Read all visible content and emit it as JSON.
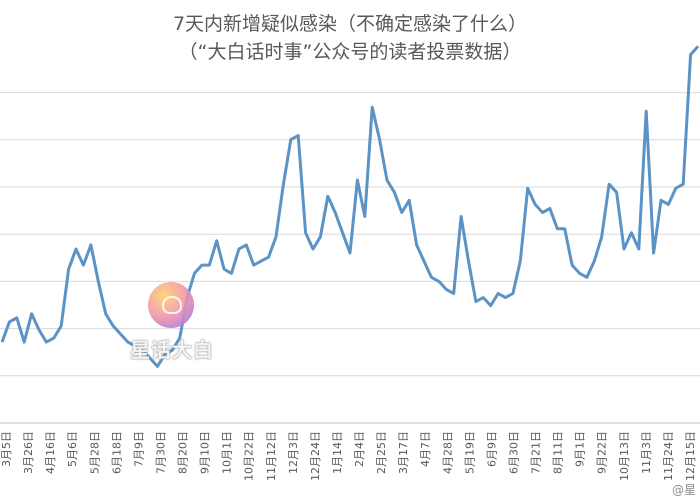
{
  "chart_data": {
    "type": "line",
    "title": "7天内新增疑似感染（不确定感染了什么）",
    "subtitle": "（“大白话时事”公众号的读者投票数据）",
    "series_color": "#5b93c6",
    "grid": true,
    "legend": "none",
    "x_tick_labels": [
      "3月5日",
      "3月26日",
      "4月16日",
      "5月6日",
      "5月28日",
      "6月18日",
      "7月9日",
      "7月30日",
      "8月20日",
      "9月10日",
      "10月1日",
      "10月22日",
      "11月12日",
      "12月3日",
      "12月24日",
      "1月14日",
      "2月4日",
      "2月25日",
      "3月17日",
      "4月7日",
      "4月28日",
      "5月19日",
      "6月9日",
      "6月30日",
      "7月21日",
      "8月11日",
      "9月1日",
      "9月22日",
      "10月13日",
      "11月3日",
      "11月24日",
      "12月15日"
    ],
    "values": [
      1.8,
      2.3,
      2.4,
      1.8,
      2.5,
      2.1,
      1.8,
      1.9,
      2.2,
      3.6,
      4.1,
      3.7,
      4.2,
      3.3,
      2.5,
      2.2,
      2.0,
      1.8,
      1.7,
      1.6,
      1.4,
      1.2,
      1.5,
      1.6,
      1.9,
      2.9,
      3.5,
      3.7,
      3.7,
      4.3,
      3.6,
      3.5,
      4.1,
      4.2,
      3.7,
      3.8,
      3.9,
      4.4,
      5.7,
      6.8,
      6.9,
      4.5,
      4.1,
      4.4,
      5.4,
      5.0,
      4.5,
      4.0,
      5.8,
      4.9,
      7.6,
      6.8,
      5.8,
      5.5,
      5.0,
      5.3,
      4.2,
      3.8,
      3.4,
      3.3,
      3.1,
      3.0,
      4.9,
      3.8,
      2.8,
      2.9,
      2.7,
      3.0,
      2.9,
      3.0,
      3.8,
      5.6,
      5.2,
      5.0,
      5.1,
      4.6,
      4.6,
      3.7,
      3.5,
      3.4,
      3.8,
      4.4,
      5.7,
      5.5,
      4.1,
      4.5,
      4.1,
      7.5,
      4.0,
      5.3,
      5.2,
      5.6,
      5.7,
      8.9,
      9.1
    ],
    "ylim": [
      0,
      10
    ]
  },
  "watermark": {
    "text": "星话大白"
  },
  "corner_mark": {
    "text": "@星"
  }
}
